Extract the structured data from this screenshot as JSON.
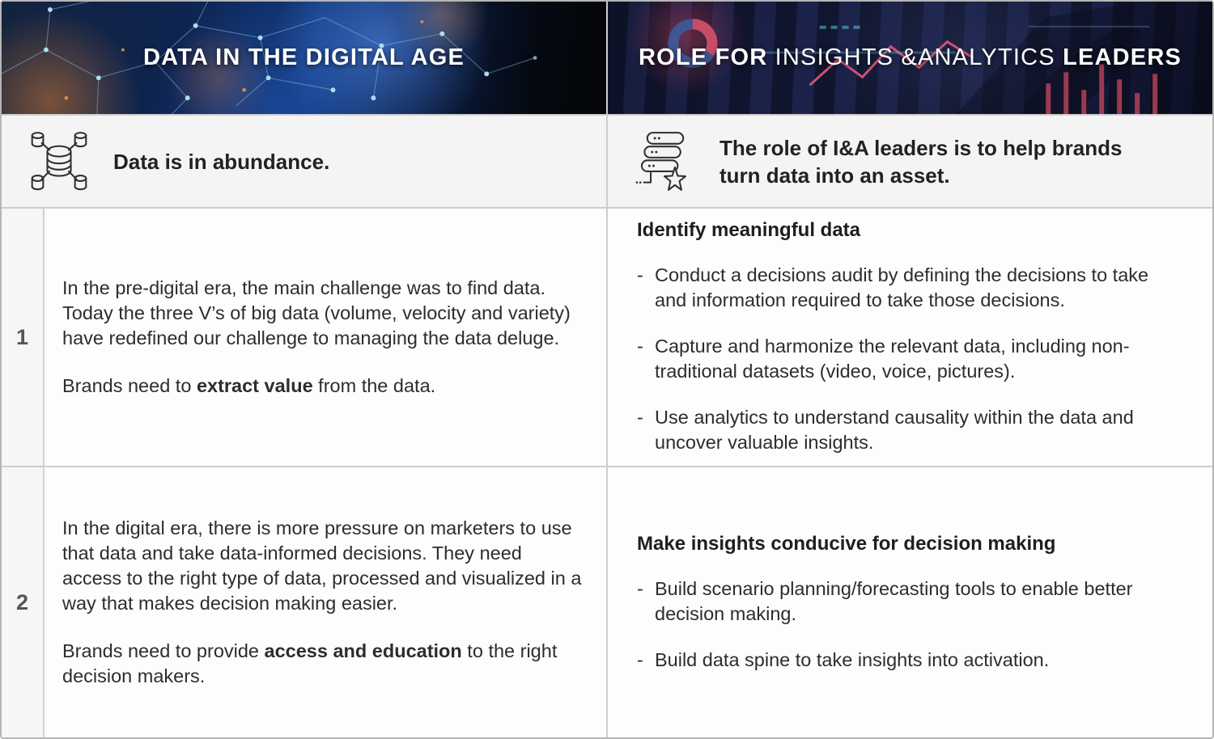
{
  "ui": {
    "bullet_marker": "-"
  },
  "colors": {
    "header_text": "#ffffff",
    "body_text": "#2d2d2d",
    "subtitle_bg": "#f4f4f4",
    "number_bg": "#f6f6f6",
    "number_text": "#555555",
    "border": "#cdcdcd",
    "accent_blue": "#1e4fa8",
    "accent_orange": "#d08445",
    "accent_red": "#d84b63"
  },
  "left": {
    "header_title": "DATA IN THE DIGITAL AGE",
    "subtitle": "Data is in abundance.",
    "subtitle_icon": "database-network-icon",
    "rows": [
      {
        "number": "1",
        "paragraphs": [
          [
            {
              "t": "In the pre-digital era, the main challenge was to find data. Today the three V’s of big data (volume, velocity and variety) have redefined our challenge to managing the data deluge.",
              "b": false
            }
          ],
          [
            {
              "t": "Brands need to ",
              "b": false
            },
            {
              "t": "extract value",
              "b": true
            },
            {
              "t": " from the data.",
              "b": false
            }
          ]
        ]
      },
      {
        "number": "2",
        "paragraphs": [
          [
            {
              "t": "In the digital era, there is more pressure on marketers to use that data and take data-informed decisions. They need access to the right type of data, processed and visualized in a way that makes decision making easier.",
              "b": false
            }
          ],
          [
            {
              "t": "Brands need to provide ",
              "b": false
            },
            {
              "t": "access and education",
              "b": true
            },
            {
              "t": " to the right decision makers.",
              "b": false
            }
          ]
        ]
      }
    ]
  },
  "right": {
    "header_parts": [
      {
        "t": "ROLE FOR ",
        "b": true
      },
      {
        "t": "INSIGHTS &ANALYTICS ",
        "b": false
      },
      {
        "t": "LEADERS",
        "b": true
      }
    ],
    "subtitle": "The role of I&A leaders is to help brands turn data into an asset.",
    "subtitle_icon": "server-star-icon",
    "rows": [
      {
        "heading": "Identify meaningful data",
        "bullets": [
          "Conduct a decisions audit by defining the decisions to take and information required to take those decisions.",
          "Capture and harmonize the relevant data, including non-traditional datasets (video, voice, pictures).",
          "Use analytics to understand causality within the data and uncover valuable insights."
        ]
      },
      {
        "heading": "Make insights conducive for decision making",
        "bullets": [
          "Build scenario planning/forecasting tools to enable better decision making.",
          "Build data spine to take insights into activation."
        ]
      }
    ]
  }
}
